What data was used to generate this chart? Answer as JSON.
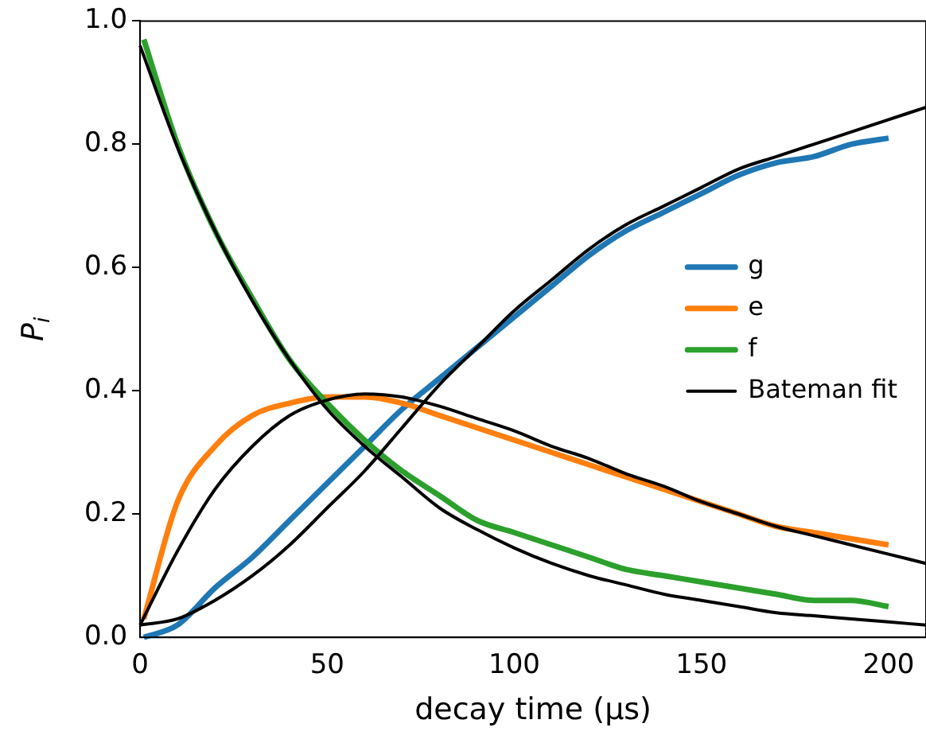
{
  "chart_data": {
    "type": "line",
    "xlabel": "decay time (μs)",
    "ylabel": "P$_{i}$",
    "xlim": [
      0,
      210
    ],
    "xticks": [
      0,
      50,
      100,
      150,
      200
    ],
    "ylim": [
      0,
      1
    ],
    "yticks": [
      {
        "value": 0,
        "label": "0.0"
      },
      {
        "value": 0.2,
        "label": "0.2"
      },
      {
        "value": 0.4,
        "label": "0.4"
      },
      {
        "value": 0.6,
        "label": "0.6"
      },
      {
        "value": 0.8,
        "label": "0.8"
      },
      {
        "value": 1,
        "label": "1.0"
      }
    ],
    "grid": false,
    "legend": "right",
    "marker": "none",
    "line_style": "solid",
    "series": [
      {
        "name": "g",
        "color": "#1f77b4",
        "x": [
          1,
          10,
          20,
          30,
          40,
          50,
          60,
          70,
          80,
          90,
          100,
          110,
          120,
          130,
          140,
          150,
          160,
          170,
          180,
          190,
          200
        ],
        "values": [
          0.0,
          0.02,
          0.08,
          0.13,
          0.19,
          0.25,
          0.31,
          0.37,
          0.42,
          0.47,
          0.52,
          0.57,
          0.62,
          0.66,
          0.69,
          0.72,
          0.75,
          0.77,
          0.78,
          0.8,
          0.81
        ]
      },
      {
        "name": "e",
        "color": "#ff7f0e",
        "x": [
          1,
          10,
          20,
          30,
          40,
          50,
          60,
          70,
          80,
          90,
          100,
          110,
          120,
          130,
          140,
          150,
          160,
          170,
          180,
          190,
          200
        ],
        "values": [
          0.03,
          0.22,
          0.31,
          0.36,
          0.38,
          0.39,
          0.39,
          0.38,
          0.36,
          0.34,
          0.32,
          0.3,
          0.28,
          0.26,
          0.24,
          0.22,
          0.2,
          0.18,
          0.17,
          0.16,
          0.15
        ]
      },
      {
        "name": "f",
        "color": "#2ca02c",
        "x": [
          1,
          10,
          20,
          30,
          40,
          50,
          60,
          70,
          80,
          90,
          100,
          110,
          120,
          130,
          140,
          150,
          160,
          170,
          180,
          190,
          200
        ],
        "values": [
          0.97,
          0.8,
          0.66,
          0.55,
          0.45,
          0.38,
          0.32,
          0.27,
          0.23,
          0.19,
          0.17,
          0.15,
          0.13,
          0.11,
          0.1,
          0.09,
          0.08,
          0.07,
          0.06,
          0.06,
          0.05
        ]
      },
      {
        "name": "Bateman fit",
        "color": "#000000",
        "x": [
          0,
          10,
          20,
          30,
          40,
          50,
          60,
          70,
          80,
          90,
          100,
          110,
          120,
          130,
          140,
          150,
          160,
          170,
          180,
          190,
          200,
          210
        ],
        "values": [
          0.02,
          0.03,
          0.06,
          0.1,
          0.15,
          0.21,
          0.27,
          0.34,
          0.41,
          0.47,
          0.53,
          0.58,
          0.63,
          0.67,
          0.7,
          0.73,
          0.76,
          0.78,
          0.8,
          0.82,
          0.84,
          0.86
        ]
      },
      {
        "color": "#000000",
        "x": [
          0,
          10,
          20,
          30,
          40,
          50,
          60,
          70,
          80,
          90,
          100,
          110,
          120,
          130,
          140,
          150,
          160,
          170,
          180,
          190,
          200,
          210
        ],
        "values": [
          0.02,
          0.14,
          0.24,
          0.31,
          0.36,
          0.385,
          0.395,
          0.39,
          0.375,
          0.355,
          0.335,
          0.31,
          0.29,
          0.265,
          0.245,
          0.22,
          0.2,
          0.18,
          0.165,
          0.15,
          0.135,
          0.12
        ]
      },
      {
        "color": "#000000",
        "x": [
          0,
          10,
          20,
          30,
          40,
          50,
          60,
          70,
          80,
          90,
          100,
          110,
          120,
          130,
          140,
          150,
          160,
          170,
          180,
          190,
          200,
          210
        ],
        "values": [
          0.96,
          0.795,
          0.66,
          0.546,
          0.45,
          0.37,
          0.31,
          0.26,
          0.21,
          0.175,
          0.145,
          0.12,
          0.1,
          0.085,
          0.07,
          0.06,
          0.05,
          0.04,
          0.035,
          0.03,
          0.025,
          0.02
        ]
      }
    ]
  }
}
